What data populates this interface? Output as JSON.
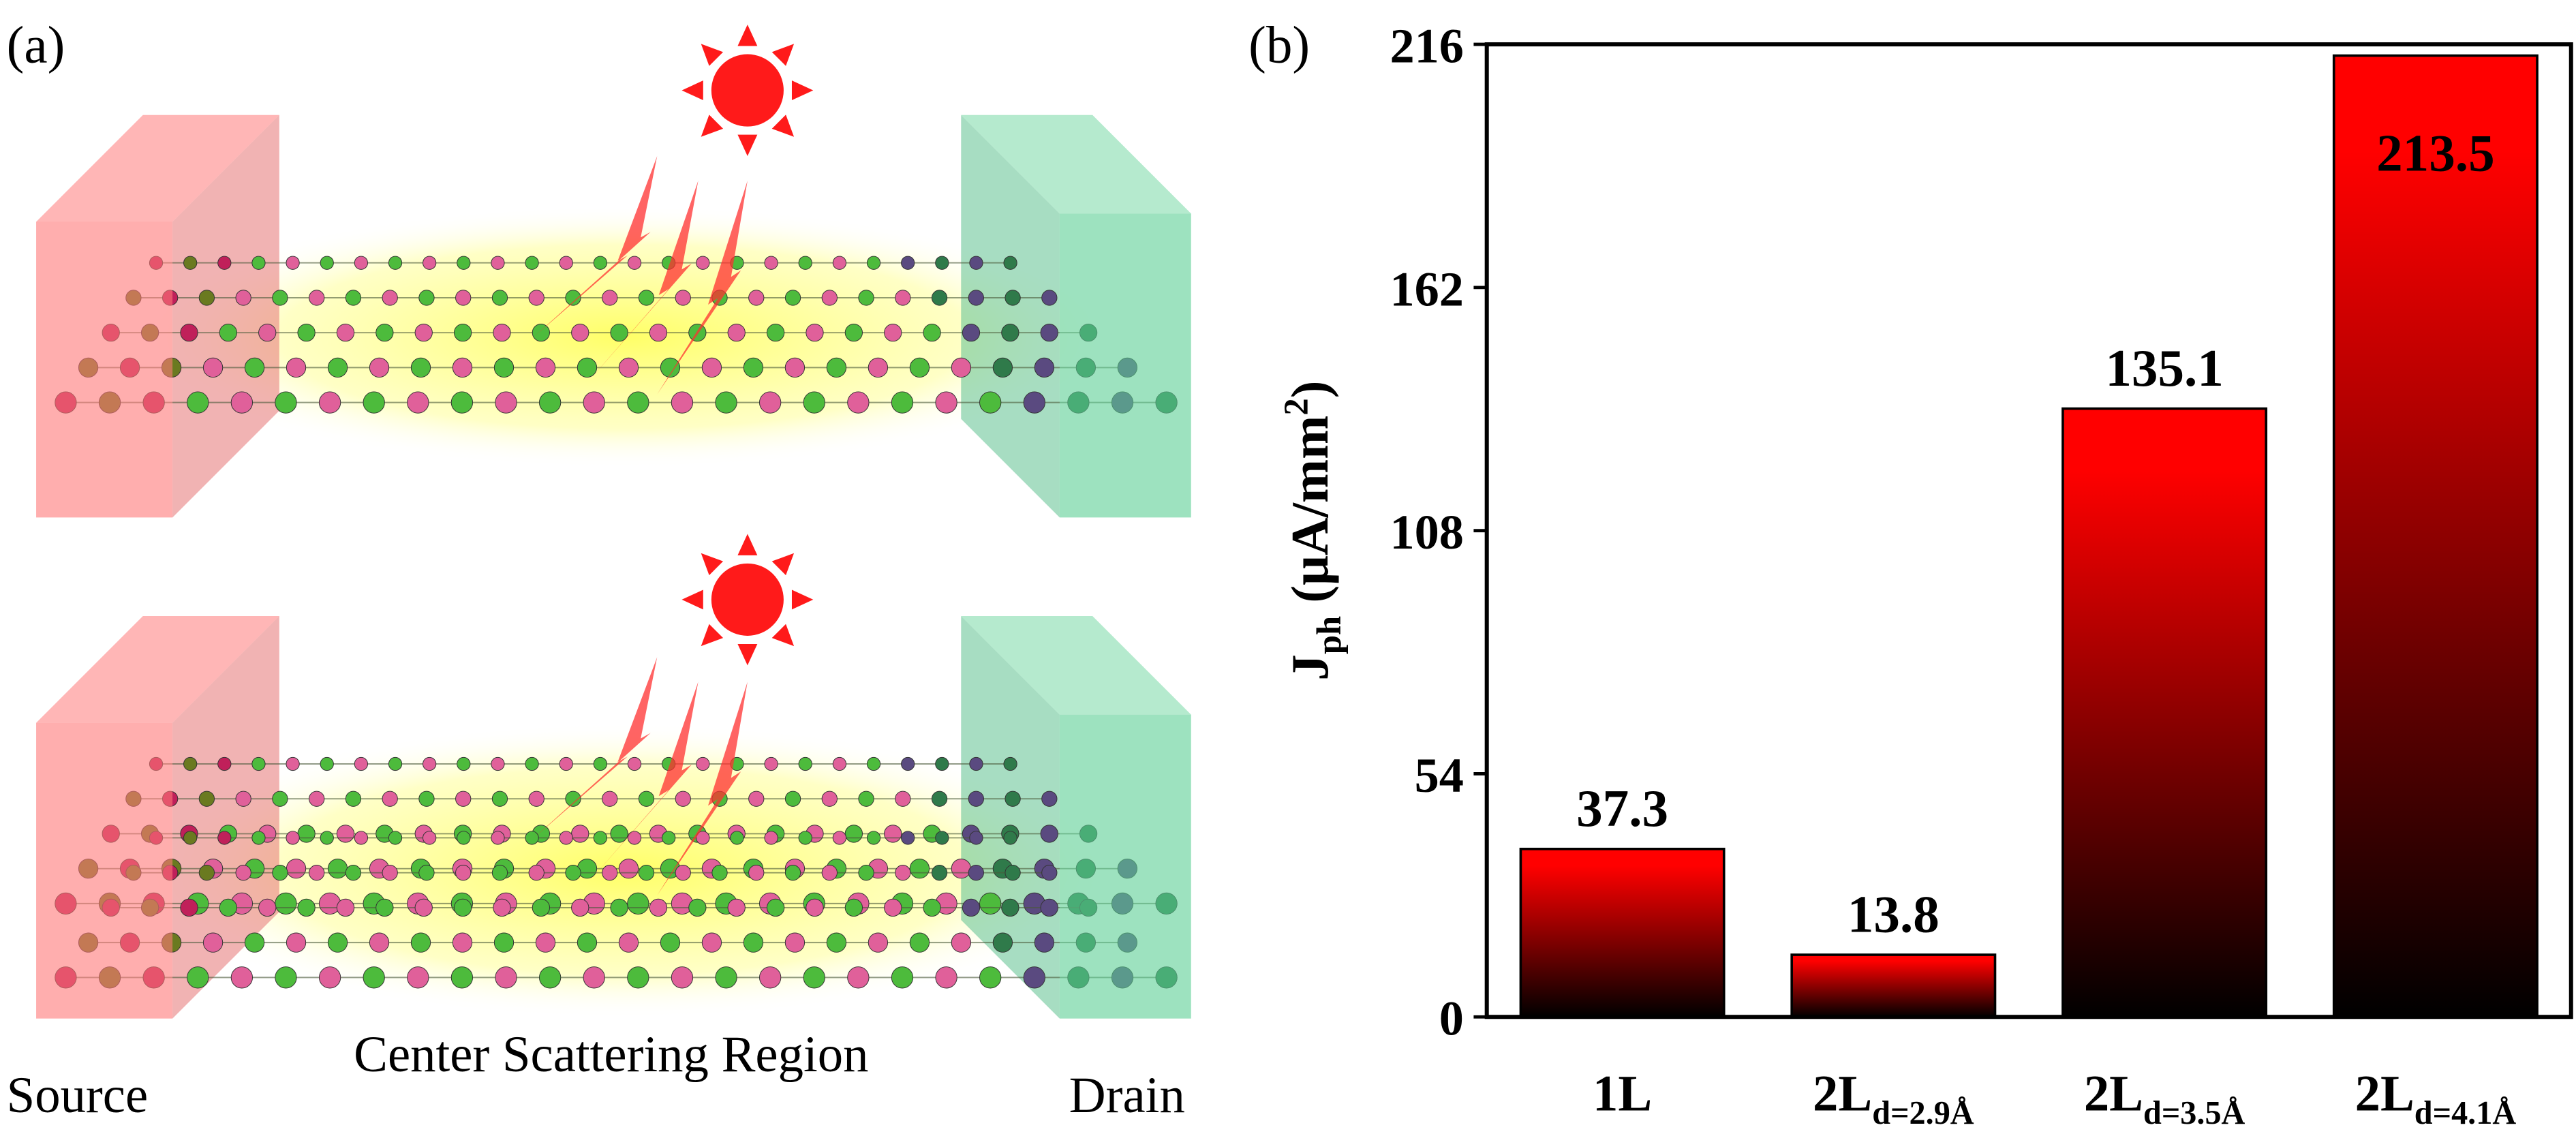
{
  "panel_labels": [
    "(a)",
    "(b)"
  ],
  "diagram": {
    "source": "Source",
    "center": "Center Scattering Region",
    "drain": "Drain"
  },
  "chart_data": {
    "type": "bar",
    "ylabel": {
      "main": "J",
      "sub": "ph",
      "unit": "(μA/mm",
      "sup": "2",
      "close": ")"
    },
    "categories": [
      "1L",
      "2L",
      "2L",
      "2L"
    ],
    "category_subscripts": [
      null,
      "d=2.9Å",
      "d=3.5Å",
      "d=4.1Å"
    ],
    "values": [
      37.3,
      13.8,
      135.1,
      213.5
    ],
    "color": [
      "#ff0000",
      "#000000"
    ],
    "ylim": [
      0,
      216
    ],
    "yticks": [
      0,
      54,
      108,
      162,
      216
    ]
  }
}
